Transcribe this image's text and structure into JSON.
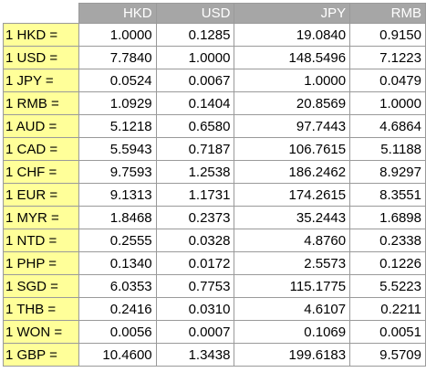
{
  "table": {
    "columns": [
      "",
      "HKD",
      "USD",
      "JPY",
      "RMB"
    ],
    "rows": [
      {
        "label": "1 HKD =",
        "values": [
          "1.0000",
          "0.1285",
          "19.0840",
          "0.9150"
        ]
      },
      {
        "label": "1 USD =",
        "values": [
          "7.7840",
          "1.0000",
          "148.5496",
          "7.1223"
        ]
      },
      {
        "label": "1 JPY =",
        "values": [
          "0.0524",
          "0.0067",
          "1.0000",
          "0.0479"
        ]
      },
      {
        "label": "1 RMB =",
        "values": [
          "1.0929",
          "0.1404",
          "20.8569",
          "1.0000"
        ]
      },
      {
        "label": "1 AUD =",
        "values": [
          "5.1218",
          "0.6580",
          "97.7443",
          "4.6864"
        ]
      },
      {
        "label": "1 CAD =",
        "values": [
          "5.5943",
          "0.7187",
          "106.7615",
          "5.1188"
        ]
      },
      {
        "label": "1 CHF =",
        "values": [
          "9.7593",
          "1.2538",
          "186.2462",
          "8.9297"
        ]
      },
      {
        "label": "1 EUR =",
        "values": [
          "9.1313",
          "1.1731",
          "174.2615",
          "8.3551"
        ]
      },
      {
        "label": "1 MYR =",
        "values": [
          "1.8468",
          "0.2373",
          "35.2443",
          "1.6898"
        ]
      },
      {
        "label": "1 NTD =",
        "values": [
          "0.2555",
          "0.0328",
          "4.8760",
          "0.2338"
        ]
      },
      {
        "label": "1 PHP =",
        "values": [
          "0.1340",
          "0.0172",
          "2.5573",
          "0.1226"
        ]
      },
      {
        "label": "1 SGD =",
        "values": [
          "6.0353",
          "0.7753",
          "115.1775",
          "5.5223"
        ]
      },
      {
        "label": "1 THB =",
        "values": [
          "0.2416",
          "0.0310",
          "4.6107",
          "0.2211"
        ]
      },
      {
        "label": "1 WON =",
        "values": [
          "0.0056",
          "0.0007",
          "0.1069",
          "0.0051"
        ]
      },
      {
        "label": "1 GBP =",
        "values": [
          "10.4600",
          "1.3438",
          "199.6183",
          "9.5709"
        ]
      }
    ]
  },
  "colors": {
    "header_bg": "#a6a6a6",
    "header_text": "#ffffff",
    "label_bg": "#ffff99",
    "border": "#9a9a9a"
  }
}
